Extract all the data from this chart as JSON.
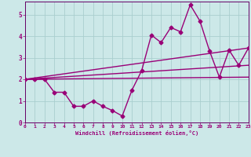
{
  "background_color": "#cce8e8",
  "grid_color": "#aacece",
  "line_color": "#990077",
  "spine_color": "#660066",
  "xlabel": "Windchill (Refroidissement éolien,°C)",
  "xlim": [
    0,
    23
  ],
  "ylim": [
    0,
    5.6
  ],
  "yticks": [
    0,
    1,
    2,
    3,
    4,
    5
  ],
  "xticks": [
    0,
    1,
    2,
    3,
    4,
    5,
    6,
    7,
    8,
    9,
    10,
    11,
    12,
    13,
    14,
    15,
    16,
    17,
    18,
    19,
    20,
    21,
    22,
    23
  ],
  "series1_x": [
    0,
    1,
    2,
    3,
    4,
    5,
    6,
    7,
    8,
    9,
    10,
    11,
    12,
    13,
    14,
    15,
    16,
    17,
    18,
    19,
    20,
    21,
    22,
    23
  ],
  "series1_y": [
    2.0,
    2.0,
    2.0,
    1.4,
    1.4,
    0.75,
    0.75,
    1.0,
    0.75,
    0.55,
    0.3,
    1.5,
    2.4,
    4.05,
    3.7,
    4.4,
    4.2,
    5.45,
    4.7,
    3.3,
    2.1,
    3.35,
    2.65,
    3.45
  ],
  "series2_x": [
    0,
    23
  ],
  "series2_y": [
    2.0,
    3.45
  ],
  "series3_x": [
    0,
    23
  ],
  "series3_y": [
    2.0,
    2.65
  ],
  "series4_x": [
    0,
    23
  ],
  "series4_y": [
    2.0,
    2.1
  ],
  "marker": "D",
  "marker_size": 2.5,
  "line_width": 1.0
}
